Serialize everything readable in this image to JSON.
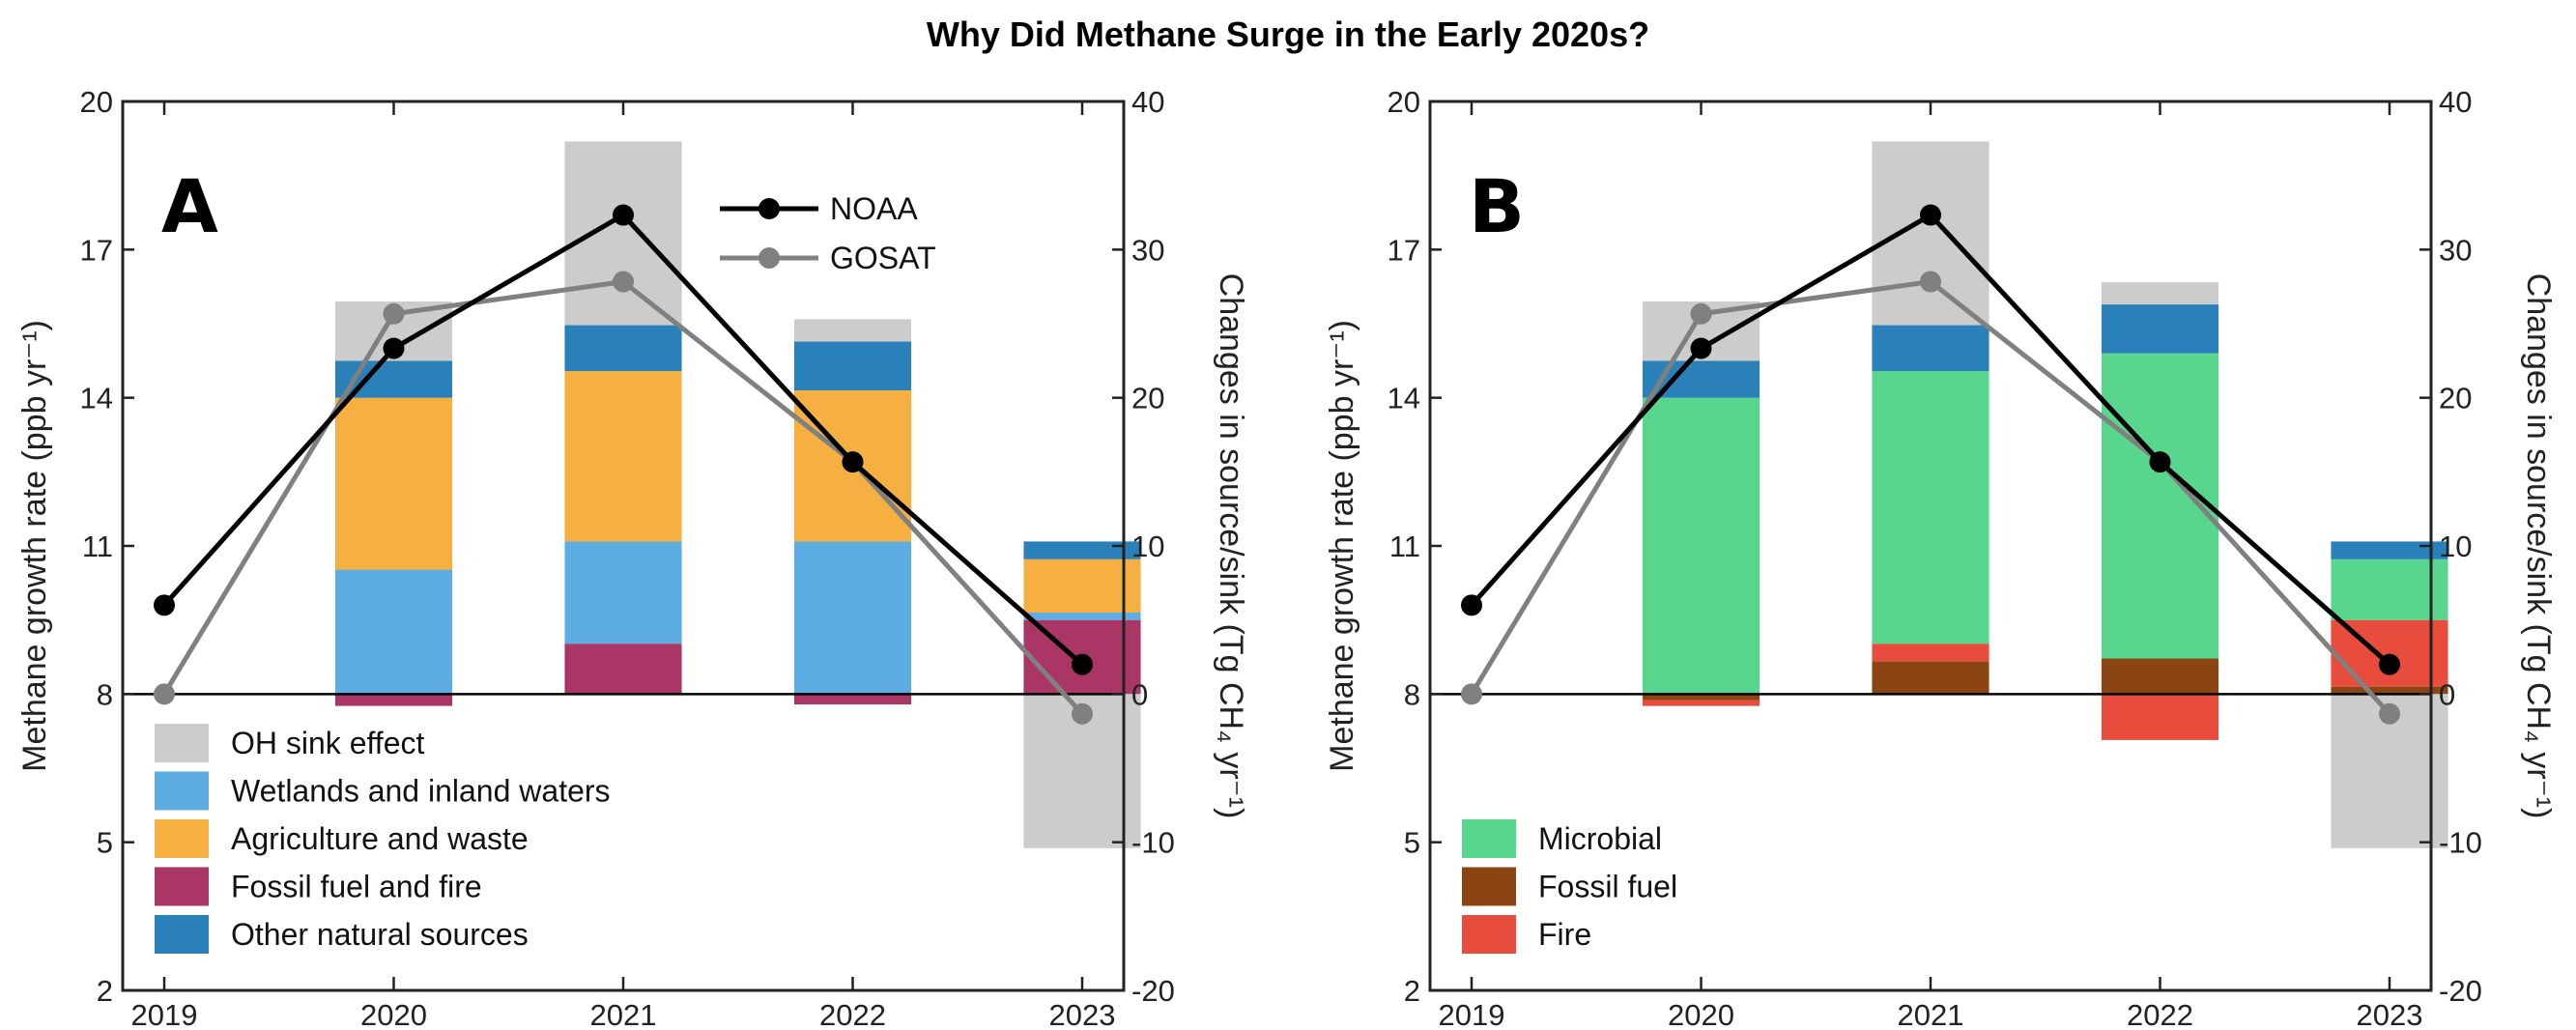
{
  "title": "Why Did Methane Surge in the Early 2020s?",
  "colors": {
    "oh": "#cccccc",
    "wetlands": "#5dade2",
    "agriculture": "#f5b041",
    "fossil_fire": "#a93664",
    "other": "#2a80b9",
    "microbial": "#58d68d",
    "fossil": "#8b4513",
    "fire": "#e74c3c",
    "noaa": "#000000",
    "gosat": "#808080"
  },
  "chart_data": [
    {
      "type": "bar",
      "panel_label": "A",
      "categories": [
        "2019",
        "2020",
        "2021",
        "2022",
        "2023"
      ],
      "ylabel_left": "Methane growth rate (ppb yr⁻¹)",
      "ylabel_right": "Changes in source/sink (Tg CH₄ yr⁻¹)",
      "ylim_left": [
        2,
        20
      ],
      "yticks_left": [
        "2",
        "5",
        "8",
        "11",
        "14",
        "17",
        "20"
      ],
      "ylim_right": [
        -20,
        40
      ],
      "yticks_right": [
        "-20",
        "-10",
        "0",
        "10",
        "20",
        "30",
        "40"
      ],
      "stacked_bars": [
        {
          "name": "Fossil fuel and fire",
          "color": "#a93664",
          "values": [
            null,
            -0.8,
            3.4,
            -0.7,
            5.0
          ]
        },
        {
          "name": "Wetlands and inland waters",
          "color": "#5dade2",
          "values": [
            null,
            8.4,
            6.9,
            10.3,
            0.5
          ]
        },
        {
          "name": "Agriculture and waste",
          "color": "#f5b041",
          "values": [
            null,
            11.6,
            11.5,
            10.2,
            3.6
          ]
        },
        {
          "name": "Other natural sources",
          "color": "#2a80b9",
          "values": [
            null,
            2.5,
            3.1,
            3.3,
            1.2
          ]
        },
        {
          "name": "OH sink effect",
          "color": "#cccccc",
          "values": [
            null,
            4.0,
            12.4,
            1.5,
            -10.4
          ]
        }
      ],
      "legend_order": [
        "OH sink effect",
        "Wetlands and inland waters",
        "Agriculture and waste",
        "Fossil fuel and fire",
        "Other natural sources"
      ],
      "lines": [
        {
          "name": "NOAA",
          "color": "#000000",
          "values": [
            9.8,
            15.0,
            17.7,
            12.7,
            8.6
          ]
        },
        {
          "name": "GOSAT",
          "color": "#808080",
          "values": [
            8.0,
            15.7,
            16.35,
            12.7,
            7.6
          ]
        }
      ],
      "show_line_legend": true
    },
    {
      "type": "bar",
      "panel_label": "B",
      "categories": [
        "2019",
        "2020",
        "2021",
        "2022",
        "2023"
      ],
      "ylabel_left": "Methane growth rate (ppb yr⁻¹)",
      "ylabel_right": "Changes in source/sink (Tg CH₄ yr⁻¹)",
      "ylim_left": [
        2,
        20
      ],
      "yticks_left": [
        "2",
        "5",
        "8",
        "11",
        "14",
        "17",
        "20"
      ],
      "ylim_right": [
        -20,
        40
      ],
      "yticks_right": [
        "-20",
        "-10",
        "0",
        "10",
        "20",
        "30",
        "40"
      ],
      "stacked_bars": [
        {
          "name": "Fossil fuel",
          "color": "#8b4513",
          "values": [
            null,
            -0.4,
            2.2,
            2.4,
            0.5
          ]
        },
        {
          "name": "Fire",
          "color": "#e74c3c",
          "values": [
            null,
            -0.4,
            1.2,
            -3.1,
            4.5
          ]
        },
        {
          "name": "Microbial",
          "color": "#58d68d",
          "values": [
            null,
            20.0,
            18.4,
            20.6,
            4.1
          ]
        },
        {
          "name": "Other",
          "color": "#2a80b9",
          "values": [
            null,
            2.5,
            3.1,
            3.3,
            1.2
          ]
        },
        {
          "name": "OH",
          "color": "#cccccc",
          "values": [
            null,
            4.0,
            12.4,
            1.5,
            -10.4
          ]
        }
      ],
      "legend_order": [
        "Microbial",
        "Fossil fuel",
        "Fire"
      ],
      "lines": [
        {
          "name": "NOAA",
          "color": "#000000",
          "values": [
            9.8,
            15.0,
            17.7,
            12.7,
            8.6
          ]
        },
        {
          "name": "GOSAT",
          "color": "#808080",
          "values": [
            8.0,
            15.7,
            16.35,
            12.7,
            7.6
          ]
        }
      ],
      "show_line_legend": false
    }
  ]
}
